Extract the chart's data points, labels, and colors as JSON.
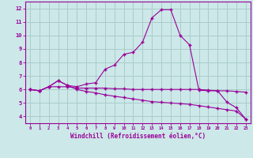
{
  "xlabel": "Windchill (Refroidissement éolien,°C)",
  "bg_color": "#cce8e8",
  "grid_color": "#aacccc",
  "line_color": "#990099",
  "spine_color": "#990099",
  "x_ticks": [
    0,
    1,
    2,
    3,
    4,
    5,
    6,
    7,
    8,
    9,
    10,
    11,
    12,
    13,
    14,
    15,
    16,
    17,
    18,
    19,
    20,
    21,
    22,
    23
  ],
  "y_ticks": [
    4,
    5,
    6,
    7,
    8,
    9,
    10,
    11,
    12
  ],
  "ylim": [
    3.5,
    12.5
  ],
  "xlim": [
    -0.5,
    23.5
  ],
  "line1_y": [
    6.0,
    5.9,
    6.2,
    6.2,
    6.2,
    6.1,
    6.1,
    6.1,
    6.1,
    6.05,
    6.05,
    6.0,
    6.0,
    6.0,
    6.0,
    6.0,
    6.0,
    6.0,
    6.0,
    5.95,
    5.9,
    5.9,
    5.85,
    5.8
  ],
  "line2_y": [
    6.0,
    5.9,
    6.2,
    6.65,
    6.3,
    6.2,
    6.4,
    6.5,
    7.5,
    7.8,
    8.6,
    8.75,
    9.5,
    11.3,
    11.9,
    11.9,
    10.0,
    9.3,
    5.95,
    5.9,
    5.9,
    5.05,
    4.65,
    3.8
  ],
  "line3_y": [
    6.0,
    5.9,
    6.2,
    6.65,
    6.3,
    6.0,
    5.85,
    5.75,
    5.6,
    5.5,
    5.4,
    5.3,
    5.2,
    5.1,
    5.05,
    5.0,
    4.95,
    4.9,
    4.8,
    4.7,
    4.6,
    4.5,
    4.4,
    3.8
  ]
}
